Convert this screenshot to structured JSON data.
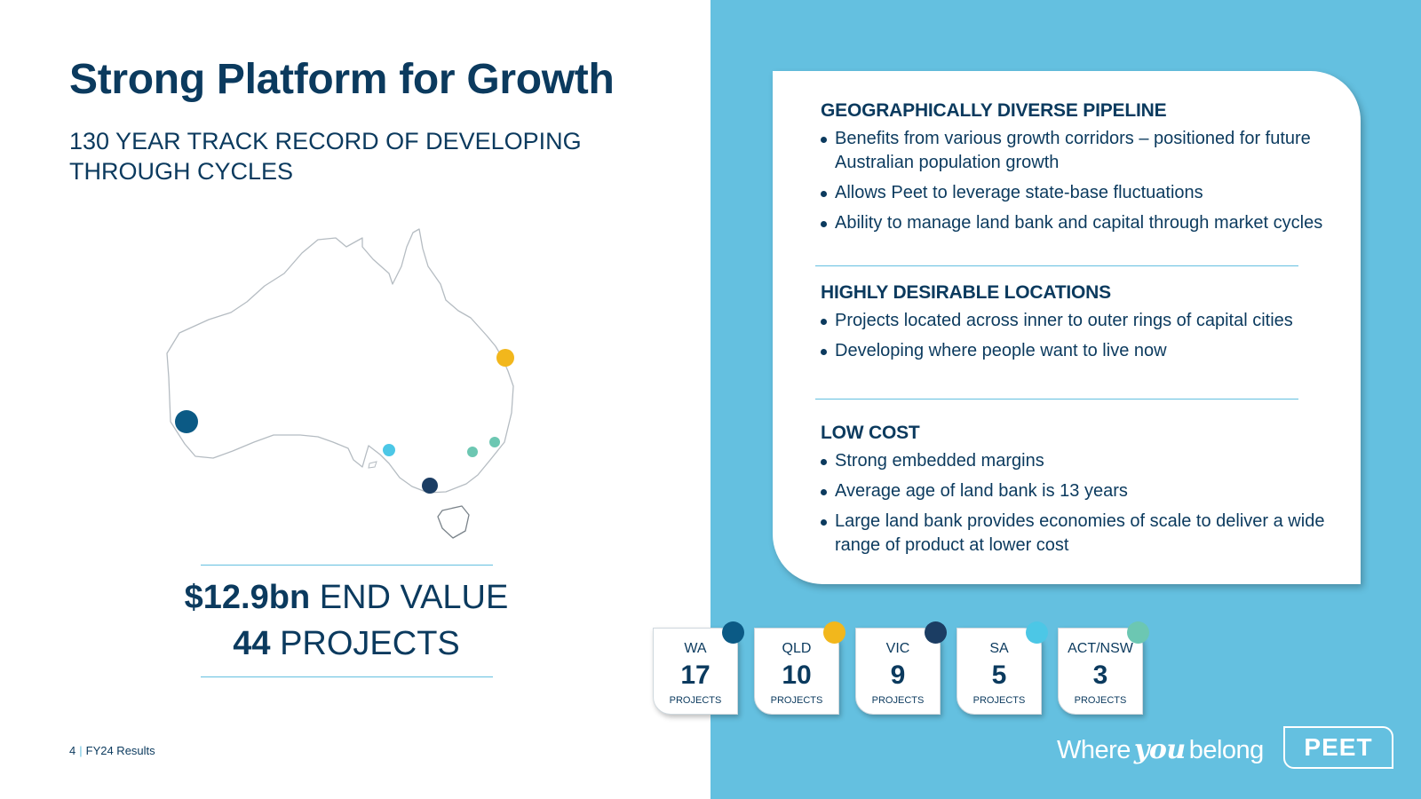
{
  "colors": {
    "navy": "#0b3a5e",
    "panel_blue": "#64c0e0",
    "wa": "#0b5a85",
    "qld": "#f2b71c",
    "vic": "#1b3d63",
    "sa": "#4cc7e6",
    "act_nsw": "#6cc7b2"
  },
  "header": {
    "title": "Strong Platform for Growth",
    "subtitle_line1": "130 YEAR TRACK RECORD OF DEVELOPING",
    "subtitle_line2": "THROUGH CYCLES"
  },
  "summary": {
    "end_value_amount": "$12.9bn",
    "end_value_label": "END VALUE",
    "projects_count": "44",
    "projects_label": "PROJECTS"
  },
  "map": {
    "icon": "australia-map-outline",
    "markers": [
      "WA",
      "QLD",
      "VIC",
      "SA",
      "ACT/NSW"
    ]
  },
  "sections": [
    {
      "heading": "GEOGRAPHICALLY DIVERSE PIPELINE",
      "bullets": [
        "Benefits from various growth corridors – positioned for future Australian population growth",
        "Allows Peet to leverage state-base fluctuations",
        "Ability to manage land bank and capital through market cycles"
      ]
    },
    {
      "heading": "HIGHLY DESIRABLE LOCATIONS",
      "bullets": [
        "Projects located across inner to outer rings of capital cities",
        "Developing where people want to live now"
      ]
    },
    {
      "heading": "LOW COST",
      "bullets": [
        "Strong embedded margins",
        "Average age of land bank is 13 years",
        "Large land bank provides economies of scale to deliver a wide range of product at lower cost"
      ]
    }
  ],
  "states": [
    {
      "state": "WA",
      "count": "17",
      "label": "PROJECTS"
    },
    {
      "state": "QLD",
      "count": "10",
      "label": "PROJECTS"
    },
    {
      "state": "VIC",
      "count": "9",
      "label": "PROJECTS"
    },
    {
      "state": "SA",
      "count": "5",
      "label": "PROJECTS"
    },
    {
      "state": "ACT/NSW",
      "count": "3",
      "label": "PROJECTS"
    }
  ],
  "footer": {
    "page_number": "4",
    "separator": "|",
    "report": "FY24 Results",
    "tagline_pre": "Where",
    "tagline_you": "you",
    "tagline_post": "belong",
    "logo_text": "PEET"
  }
}
